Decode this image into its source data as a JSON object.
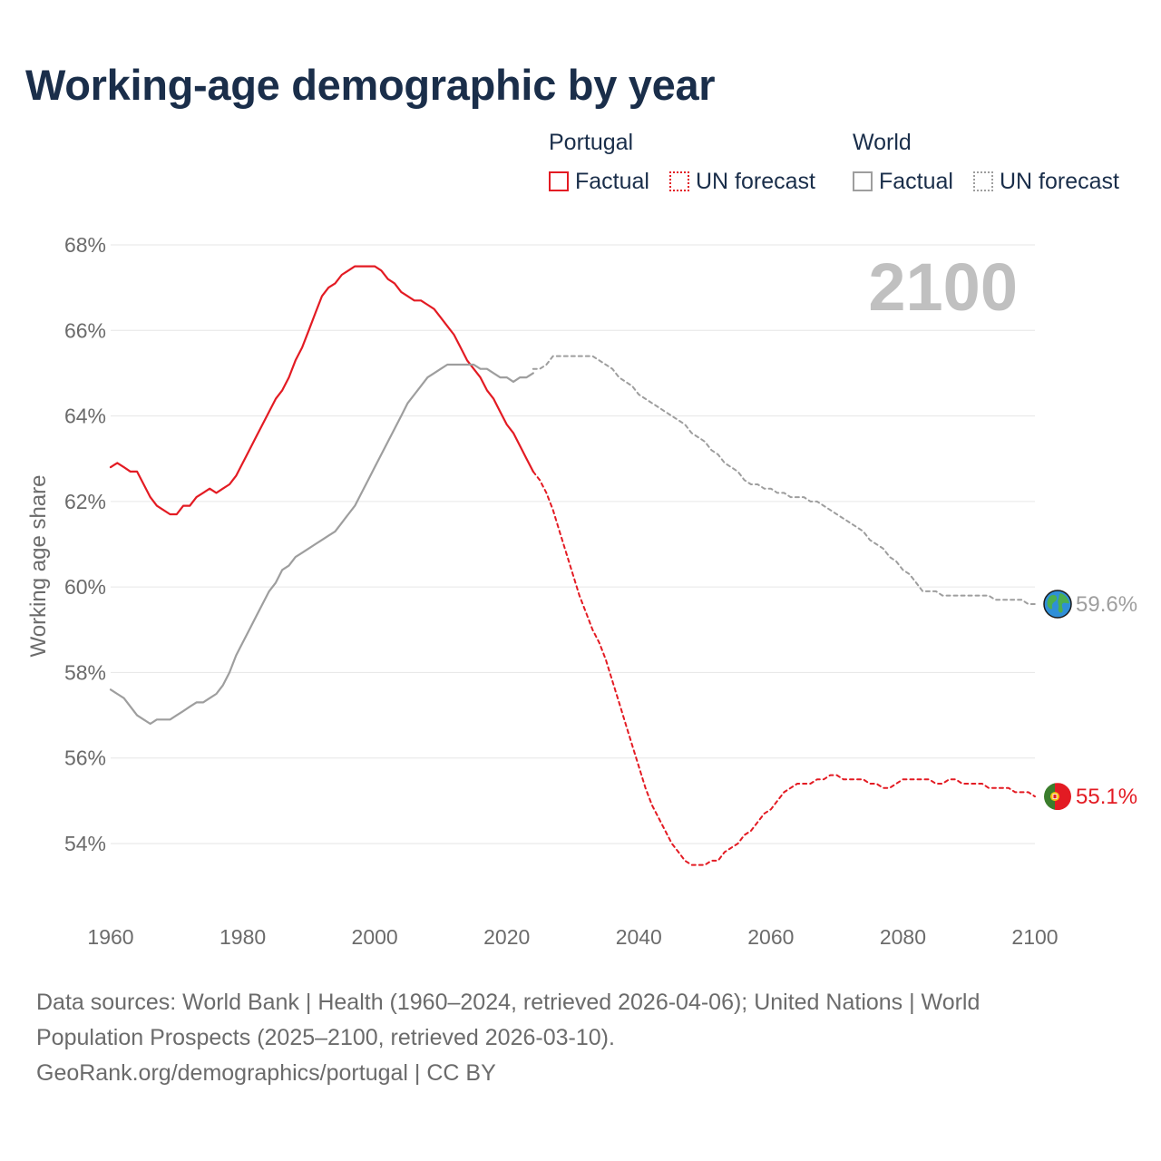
{
  "title": "Working-age demographic by year",
  "legend": {
    "portugal_title": "Portugal",
    "world_title": "World",
    "factual_label": "Factual",
    "forecast_label": "UN forecast"
  },
  "year_display": "2100",
  "colors": {
    "portugal": "#e31b23",
    "world": "#9e9e9e",
    "title": "#1a2e4a",
    "grid": "#e6e6e6"
  },
  "end_labels": {
    "portugal": "55.1%",
    "world": "59.6%"
  },
  "footer": {
    "line1": "Data sources: World Bank | Health (1960–2024, retrieved 2026-04-06); United Nations | World",
    "line2": "Population Prospects (2025–2100, retrieved 2026-03-10).",
    "line3": "GeoRank.org/demographics/portugal | CC BY"
  },
  "chart_data": {
    "type": "line",
    "title": "Working-age demographic by year",
    "xlabel": "",
    "ylabel": "Working age share",
    "xlim": [
      1960,
      2100
    ],
    "ylim": [
      52.5,
      68
    ],
    "x_ticks": [
      1960,
      1980,
      2000,
      2020,
      2040,
      2060,
      2080,
      2100
    ],
    "x_tick_labels": [
      "1960",
      "1980",
      "2000",
      "2020",
      "2040",
      "2060",
      "2080",
      "2100"
    ],
    "y_ticks": [
      54,
      56,
      58,
      60,
      62,
      64,
      66,
      68
    ],
    "y_tick_labels": [
      "54%",
      "56%",
      "58%",
      "60%",
      "62%",
      "64%",
      "66%",
      "68%"
    ],
    "series": [
      {
        "name": "Portugal",
        "segment": "Factual",
        "style": "solid",
        "color": "#e31b23",
        "x": [
          1960,
          1961,
          1962,
          1963,
          1964,
          1965,
          1966,
          1967,
          1968,
          1969,
          1970,
          1971,
          1972,
          1973,
          1974,
          1975,
          1976,
          1977,
          1978,
          1979,
          1980,
          1981,
          1982,
          1983,
          1984,
          1985,
          1986,
          1987,
          1988,
          1989,
          1990,
          1991,
          1992,
          1993,
          1994,
          1995,
          1996,
          1997,
          1998,
          1999,
          2000,
          2001,
          2002,
          2003,
          2004,
          2005,
          2006,
          2007,
          2008,
          2009,
          2010,
          2011,
          2012,
          2013,
          2014,
          2015,
          2016,
          2017,
          2018,
          2019,
          2020,
          2021,
          2022,
          2023,
          2024
        ],
        "y": [
          62.8,
          62.9,
          62.8,
          62.7,
          62.7,
          62.4,
          62.1,
          61.9,
          61.8,
          61.7,
          61.7,
          61.9,
          61.9,
          62.1,
          62.2,
          62.3,
          62.2,
          62.3,
          62.4,
          62.6,
          62.9,
          63.2,
          63.5,
          63.8,
          64.1,
          64.4,
          64.6,
          64.9,
          65.3,
          65.6,
          66.0,
          66.4,
          66.8,
          67.0,
          67.1,
          67.3,
          67.4,
          67.5,
          67.5,
          67.5,
          67.5,
          67.4,
          67.2,
          67.1,
          66.9,
          66.8,
          66.7,
          66.7,
          66.6,
          66.5,
          66.3,
          66.1,
          65.9,
          65.6,
          65.3,
          65.1,
          64.9,
          64.6,
          64.4,
          64.1,
          63.8,
          63.6,
          63.3,
          63.0,
          62.7
        ]
      },
      {
        "name": "Portugal",
        "segment": "UN forecast",
        "style": "dotted",
        "color": "#e31b23",
        "x": [
          2024,
          2025,
          2026,
          2027,
          2028,
          2029,
          2030,
          2031,
          2032,
          2033,
          2034,
          2035,
          2036,
          2037,
          2038,
          2039,
          2040,
          2041,
          2042,
          2043,
          2044,
          2045,
          2046,
          2047,
          2048,
          2049,
          2050,
          2051,
          2052,
          2053,
          2054,
          2055,
          2056,
          2057,
          2058,
          2059,
          2060,
          2061,
          2062,
          2063,
          2064,
          2065,
          2066,
          2067,
          2068,
          2069,
          2070,
          2071,
          2072,
          2073,
          2074,
          2075,
          2076,
          2077,
          2078,
          2079,
          2080,
          2081,
          2082,
          2083,
          2084,
          2085,
          2086,
          2087,
          2088,
          2089,
          2090,
          2091,
          2092,
          2093,
          2094,
          2095,
          2096,
          2097,
          2098,
          2099,
          2100
        ],
        "y": [
          62.7,
          62.5,
          62.2,
          61.8,
          61.3,
          60.8,
          60.3,
          59.8,
          59.4,
          59.0,
          58.7,
          58.3,
          57.8,
          57.3,
          56.8,
          56.3,
          55.8,
          55.3,
          54.9,
          54.6,
          54.3,
          54.0,
          53.8,
          53.6,
          53.5,
          53.5,
          53.5,
          53.6,
          53.6,
          53.8,
          53.9,
          54.0,
          54.2,
          54.3,
          54.5,
          54.7,
          54.8,
          55.0,
          55.2,
          55.3,
          55.4,
          55.4,
          55.4,
          55.5,
          55.5,
          55.6,
          55.6,
          55.5,
          55.5,
          55.5,
          55.5,
          55.4,
          55.4,
          55.3,
          55.3,
          55.4,
          55.5,
          55.5,
          55.5,
          55.5,
          55.5,
          55.4,
          55.4,
          55.5,
          55.5,
          55.4,
          55.4,
          55.4,
          55.4,
          55.3,
          55.3,
          55.3,
          55.3,
          55.2,
          55.2,
          55.2,
          55.1
        ]
      },
      {
        "name": "World",
        "segment": "Factual",
        "style": "solid",
        "color": "#9e9e9e",
        "x": [
          1960,
          1961,
          1962,
          1963,
          1964,
          1965,
          1966,
          1967,
          1968,
          1969,
          1970,
          1971,
          1972,
          1973,
          1974,
          1975,
          1976,
          1977,
          1978,
          1979,
          1980,
          1981,
          1982,
          1983,
          1984,
          1985,
          1986,
          1987,
          1988,
          1989,
          1990,
          1991,
          1992,
          1993,
          1994,
          1995,
          1996,
          1997,
          1998,
          1999,
          2000,
          2001,
          2002,
          2003,
          2004,
          2005,
          2006,
          2007,
          2008,
          2009,
          2010,
          2011,
          2012,
          2013,
          2014,
          2015,
          2016,
          2017,
          2018,
          2019,
          2020,
          2021,
          2022,
          2023,
          2024
        ],
        "y": [
          57.6,
          57.5,
          57.4,
          57.2,
          57.0,
          56.9,
          56.8,
          56.9,
          56.9,
          56.9,
          57.0,
          57.1,
          57.2,
          57.3,
          57.3,
          57.4,
          57.5,
          57.7,
          58.0,
          58.4,
          58.7,
          59.0,
          59.3,
          59.6,
          59.9,
          60.1,
          60.4,
          60.5,
          60.7,
          60.8,
          60.9,
          61.0,
          61.1,
          61.2,
          61.3,
          61.5,
          61.7,
          61.9,
          62.2,
          62.5,
          62.8,
          63.1,
          63.4,
          63.7,
          64.0,
          64.3,
          64.5,
          64.7,
          64.9,
          65.0,
          65.1,
          65.2,
          65.2,
          65.2,
          65.2,
          65.2,
          65.1,
          65.1,
          65.0,
          64.9,
          64.9,
          64.8,
          64.9,
          64.9,
          65.0
        ]
      },
      {
        "name": "World",
        "segment": "UN forecast",
        "style": "dotted",
        "color": "#9e9e9e",
        "x": [
          2024,
          2025,
          2026,
          2027,
          2028,
          2029,
          2030,
          2031,
          2032,
          2033,
          2034,
          2035,
          2036,
          2037,
          2038,
          2039,
          2040,
          2041,
          2042,
          2043,
          2044,
          2045,
          2046,
          2047,
          2048,
          2049,
          2050,
          2051,
          2052,
          2053,
          2054,
          2055,
          2056,
          2057,
          2058,
          2059,
          2060,
          2061,
          2062,
          2063,
          2064,
          2065,
          2066,
          2067,
          2068,
          2069,
          2070,
          2071,
          2072,
          2073,
          2074,
          2075,
          2076,
          2077,
          2078,
          2079,
          2080,
          2081,
          2082,
          2083,
          2084,
          2085,
          2086,
          2087,
          2088,
          2089,
          2090,
          2091,
          2092,
          2093,
          2094,
          2095,
          2096,
          2097,
          2098,
          2099,
          2100
        ],
        "y": [
          65.1,
          65.1,
          65.2,
          65.4,
          65.4,
          65.4,
          65.4,
          65.4,
          65.4,
          65.4,
          65.3,
          65.2,
          65.1,
          64.9,
          64.8,
          64.7,
          64.5,
          64.4,
          64.3,
          64.2,
          64.1,
          64.0,
          63.9,
          63.8,
          63.6,
          63.5,
          63.4,
          63.2,
          63.1,
          62.9,
          62.8,
          62.7,
          62.5,
          62.4,
          62.4,
          62.3,
          62.3,
          62.2,
          62.2,
          62.1,
          62.1,
          62.1,
          62.0,
          62.0,
          61.9,
          61.8,
          61.7,
          61.6,
          61.5,
          61.4,
          61.3,
          61.1,
          61.0,
          60.9,
          60.7,
          60.6,
          60.4,
          60.3,
          60.1,
          59.9,
          59.9,
          59.9,
          59.8,
          59.8,
          59.8,
          59.8,
          59.8,
          59.8,
          59.8,
          59.8,
          59.7,
          59.7,
          59.7,
          59.7,
          59.7,
          59.6,
          59.6
        ]
      }
    ]
  }
}
